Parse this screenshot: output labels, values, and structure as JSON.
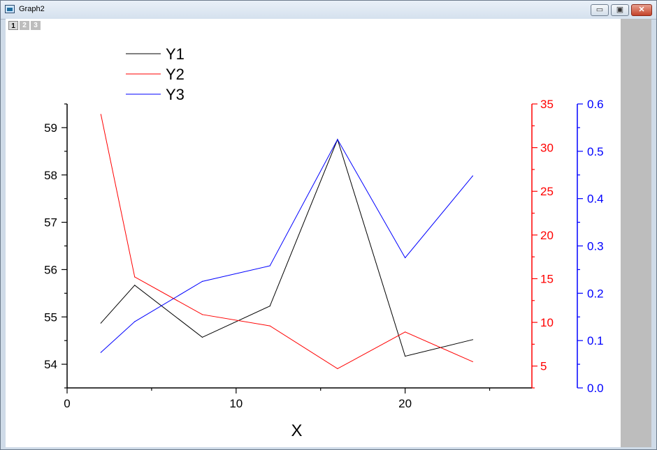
{
  "window": {
    "title": "Graph2",
    "controls": {
      "minimize": "▭",
      "maximize": "▣",
      "close": "✕"
    }
  },
  "page_tabs": [
    "1",
    "2",
    "3"
  ],
  "chart_data": {
    "type": "line",
    "xlabel": "X",
    "x": [
      2,
      4,
      8,
      12,
      16,
      20,
      24
    ],
    "xlim": [
      0,
      27.5
    ],
    "xticks": [
      0,
      10,
      20
    ],
    "series": [
      {
        "name": "Y1",
        "color": "#000000",
        "axis": "left",
        "values": [
          54.87,
          55.67,
          54.57,
          55.23,
          58.75,
          54.17,
          54.52
        ]
      },
      {
        "name": "Y2",
        "color": "#ff0000",
        "axis": "right1",
        "values": [
          33.8,
          15.2,
          10.9,
          9.6,
          4.7,
          8.9,
          5.5
        ]
      },
      {
        "name": "Y3",
        "color": "#0000ff",
        "axis": "right2",
        "values": [
          0.075,
          0.14,
          0.225,
          0.258,
          0.525,
          0.275,
          0.448
        ]
      }
    ],
    "axes": {
      "left": {
        "range": [
          53.5,
          59.5
        ],
        "ticks": [
          54,
          55,
          56,
          57,
          58,
          59
        ],
        "color": "#000000"
      },
      "right1": {
        "range": [
          2.5,
          35
        ],
        "ticks": [
          5,
          10,
          15,
          20,
          25,
          30,
          35
        ],
        "color": "#ff0000"
      },
      "right2": {
        "range": [
          0,
          0.6
        ],
        "ticks": [
          "0.0",
          "0.1",
          "0.2",
          "0.3",
          "0.4",
          "0.5",
          "0.6"
        ],
        "color": "#0000ff"
      }
    },
    "legend_position": "top-left",
    "grid": false
  }
}
